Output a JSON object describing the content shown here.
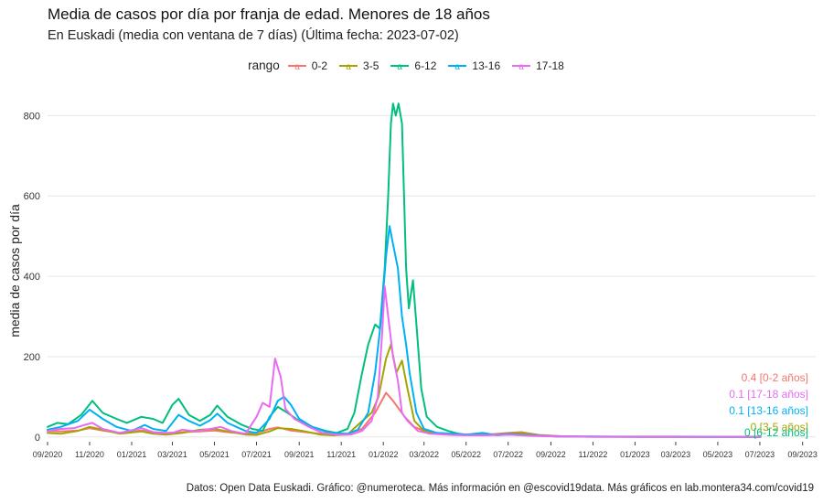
{
  "title": "Media de casos por día por franja de edad. Menores de 18 años",
  "subtitle": "En Euskadi (media con ventana de 7 días)  (Última fecha: 2023-07-02)",
  "caption": "Datos: Open Data Euskadi. Gráfico: @numeroteca. Más información en @escovid19data.  Más gráficos en lab.montera34.com/covid19",
  "legend_title": "rango",
  "colors": {
    "0-2": "#F8766D",
    "3-5": "#A3A500",
    "6-12": "#00BF7D",
    "13-16": "#00B0F6",
    "17-18": "#E76BF3",
    "grid": "#e6e6e6"
  },
  "chart_data": {
    "type": "line",
    "xlabel": "",
    "ylabel": "media de casos por día",
    "ylim": [
      -5,
      860
    ],
    "xlim": [
      "2020-09-01",
      "2023-09-20"
    ],
    "y_ticks": [
      0,
      200,
      400,
      600,
      800
    ],
    "x_ticks": [
      "2020-09-01",
      "2020-11-01",
      "2021-01-01",
      "2021-03-01",
      "2021-05-01",
      "2021-07-01",
      "2021-09-01",
      "2021-11-01",
      "2022-01-01",
      "2022-03-01",
      "2022-05-01",
      "2022-07-01",
      "2022-09-01",
      "2022-11-01",
      "2023-01-01",
      "2023-03-01",
      "2023-05-01",
      "2023-07-01",
      "2023-09-01"
    ],
    "x_tick_labels": [
      "09/2020",
      "11/2020",
      "01/2021",
      "03/2021",
      "05/2021",
      "07/2021",
      "09/2021",
      "11/2021",
      "01/2022",
      "03/2022",
      "05/2022",
      "07/2022",
      "09/2022",
      "11/2022",
      "01/2023",
      "03/2023",
      "05/2023",
      "07/2023",
      "09/2023"
    ],
    "legend_position": "top",
    "grid": true,
    "series": [
      {
        "name": "0-2",
        "end_label": "0.4 [0-2 años]",
        "points": [
          [
            "2020-09-01",
            15
          ],
          [
            "2020-09-20",
            14
          ],
          [
            "2020-10-15",
            16
          ],
          [
            "2020-11-01",
            22
          ],
          [
            "2020-11-20",
            16
          ],
          [
            "2020-12-15",
            10
          ],
          [
            "2021-01-15",
            16
          ],
          [
            "2021-02-01",
            12
          ],
          [
            "2021-02-20",
            10
          ],
          [
            "2021-03-15",
            12
          ],
          [
            "2021-04-10",
            14
          ],
          [
            "2021-05-01",
            16
          ],
          [
            "2021-05-20",
            12
          ],
          [
            "2021-06-15",
            8
          ],
          [
            "2021-07-01",
            10
          ],
          [
            "2021-07-20",
            20
          ],
          [
            "2021-08-01",
            24
          ],
          [
            "2021-08-20",
            16
          ],
          [
            "2021-09-10",
            12
          ],
          [
            "2021-10-01",
            8
          ],
          [
            "2021-10-20",
            6
          ],
          [
            "2021-11-10",
            8
          ],
          [
            "2021-12-01",
            20
          ],
          [
            "2021-12-20",
            60
          ],
          [
            "2022-01-05",
            110
          ],
          [
            "2022-01-15",
            90
          ],
          [
            "2022-02-01",
            50
          ],
          [
            "2022-02-15",
            25
          ],
          [
            "2022-03-01",
            15
          ],
          [
            "2022-03-20",
            10
          ],
          [
            "2022-04-10",
            8
          ],
          [
            "2022-05-01",
            6
          ],
          [
            "2022-06-01",
            6
          ],
          [
            "2022-07-01",
            10
          ],
          [
            "2022-07-20",
            12
          ],
          [
            "2022-08-15",
            5
          ],
          [
            "2022-09-15",
            2
          ],
          [
            "2022-11-01",
            1
          ],
          [
            "2023-01-01",
            1
          ],
          [
            "2023-03-01",
            1
          ],
          [
            "2023-05-01",
            0.8
          ],
          [
            "2023-07-02",
            0.4
          ]
        ]
      },
      {
        "name": "3-5",
        "end_label": "0 [3-5 años]",
        "points": [
          [
            "2020-09-01",
            10
          ],
          [
            "2020-09-20",
            8
          ],
          [
            "2020-10-15",
            15
          ],
          [
            "2020-11-01",
            25
          ],
          [
            "2020-11-15",
            20
          ],
          [
            "2020-12-15",
            8
          ],
          [
            "2021-01-15",
            14
          ],
          [
            "2021-02-01",
            8
          ],
          [
            "2021-02-20",
            6
          ],
          [
            "2021-03-15",
            10
          ],
          [
            "2021-04-10",
            18
          ],
          [
            "2021-05-01",
            20
          ],
          [
            "2021-05-20",
            14
          ],
          [
            "2021-06-15",
            6
          ],
          [
            "2021-07-01",
            5
          ],
          [
            "2021-07-20",
            14
          ],
          [
            "2021-08-01",
            22
          ],
          [
            "2021-08-20",
            20
          ],
          [
            "2021-09-10",
            14
          ],
          [
            "2021-10-01",
            6
          ],
          [
            "2021-10-20",
            4
          ],
          [
            "2021-11-10",
            6
          ],
          [
            "2021-11-25",
            30
          ],
          [
            "2021-12-15",
            60
          ],
          [
            "2021-12-25",
            100
          ],
          [
            "2022-01-05",
            195
          ],
          [
            "2022-01-12",
            230
          ],
          [
            "2022-01-20",
            160
          ],
          [
            "2022-01-28",
            190
          ],
          [
            "2022-02-05",
            120
          ],
          [
            "2022-02-15",
            40
          ],
          [
            "2022-03-01",
            15
          ],
          [
            "2022-03-20",
            8
          ],
          [
            "2022-04-10",
            6
          ],
          [
            "2022-05-01",
            5
          ],
          [
            "2022-06-01",
            5
          ],
          [
            "2022-07-01",
            8
          ],
          [
            "2022-07-20",
            10
          ],
          [
            "2022-08-15",
            4
          ],
          [
            "2022-09-15",
            1
          ],
          [
            "2022-11-01",
            0.5
          ],
          [
            "2023-01-01",
            0.5
          ],
          [
            "2023-03-01",
            0.3
          ],
          [
            "2023-05-01",
            0.2
          ],
          [
            "2023-07-02",
            0
          ]
        ]
      },
      {
        "name": "6-12",
        "end_label": "0 [6-12 años]",
        "points": [
          [
            "2020-09-01",
            25
          ],
          [
            "2020-09-15",
            35
          ],
          [
            "2020-10-01",
            32
          ],
          [
            "2020-10-20",
            55
          ],
          [
            "2020-11-05",
            90
          ],
          [
            "2020-11-20",
            60
          ],
          [
            "2020-12-10",
            45
          ],
          [
            "2020-12-25",
            35
          ],
          [
            "2021-01-15",
            50
          ],
          [
            "2021-02-01",
            45
          ],
          [
            "2021-02-15",
            35
          ],
          [
            "2021-03-01",
            80
          ],
          [
            "2021-03-10",
            95
          ],
          [
            "2021-03-25",
            55
          ],
          [
            "2021-04-10",
            40
          ],
          [
            "2021-04-25",
            55
          ],
          [
            "2021-05-05",
            78
          ],
          [
            "2021-05-20",
            50
          ],
          [
            "2021-06-10",
            30
          ],
          [
            "2021-06-25",
            20
          ],
          [
            "2021-07-10",
            15
          ],
          [
            "2021-07-20",
            50
          ],
          [
            "2021-08-01",
            75
          ],
          [
            "2021-08-15",
            60
          ],
          [
            "2021-09-01",
            40
          ],
          [
            "2021-09-20",
            25
          ],
          [
            "2021-10-10",
            15
          ],
          [
            "2021-10-25",
            10
          ],
          [
            "2021-11-10",
            20
          ],
          [
            "2021-11-20",
            60
          ],
          [
            "2021-11-30",
            150
          ],
          [
            "2021-12-10",
            230
          ],
          [
            "2021-12-20",
            280
          ],
          [
            "2021-12-27",
            270
          ],
          [
            "2022-01-03",
            420
          ],
          [
            "2022-01-08",
            600
          ],
          [
            "2022-01-12",
            780
          ],
          [
            "2022-01-15",
            830
          ],
          [
            "2022-01-19",
            800
          ],
          [
            "2022-01-23",
            830
          ],
          [
            "2022-01-28",
            780
          ],
          [
            "2022-02-03",
            420
          ],
          [
            "2022-02-07",
            320
          ],
          [
            "2022-02-13",
            390
          ],
          [
            "2022-02-18",
            280
          ],
          [
            "2022-02-25",
            120
          ],
          [
            "2022-03-05",
            50
          ],
          [
            "2022-03-20",
            25
          ],
          [
            "2022-04-05",
            15
          ],
          [
            "2022-04-20",
            8
          ],
          [
            "2022-05-05",
            5
          ],
          [
            "2022-05-25",
            10
          ],
          [
            "2022-06-10",
            5
          ],
          [
            "2022-07-01",
            8
          ],
          [
            "2022-07-20",
            6
          ],
          [
            "2022-08-15",
            3
          ],
          [
            "2022-09-15",
            1
          ],
          [
            "2022-11-01",
            1
          ],
          [
            "2023-01-01",
            0.5
          ],
          [
            "2023-03-01",
            0.4
          ],
          [
            "2023-05-01",
            0.2
          ],
          [
            "2023-07-02",
            0
          ]
        ]
      },
      {
        "name": "13-16",
        "end_label": "0.1 [13-16 años]",
        "points": [
          [
            "2020-09-01",
            18
          ],
          [
            "2020-09-20",
            25
          ],
          [
            "2020-10-15",
            40
          ],
          [
            "2020-11-01",
            68
          ],
          [
            "2020-11-20",
            45
          ],
          [
            "2020-12-10",
            25
          ],
          [
            "2021-01-01",
            15
          ],
          [
            "2021-01-20",
            30
          ],
          [
            "2021-02-01",
            20
          ],
          [
            "2021-02-20",
            15
          ],
          [
            "2021-03-10",
            55
          ],
          [
            "2021-03-25",
            40
          ],
          [
            "2021-04-10",
            28
          ],
          [
            "2021-04-25",
            42
          ],
          [
            "2021-05-05",
            58
          ],
          [
            "2021-05-20",
            35
          ],
          [
            "2021-06-15",
            15
          ],
          [
            "2021-07-01",
            10
          ],
          [
            "2021-07-20",
            45
          ],
          [
            "2021-08-01",
            90
          ],
          [
            "2021-08-10",
            100
          ],
          [
            "2021-08-20",
            80
          ],
          [
            "2021-09-01",
            45
          ],
          [
            "2021-09-20",
            25
          ],
          [
            "2021-10-15",
            10
          ],
          [
            "2021-11-10",
            8
          ],
          [
            "2021-11-25",
            18
          ],
          [
            "2021-12-10",
            60
          ],
          [
            "2021-12-20",
            160
          ],
          [
            "2021-12-28",
            280
          ],
          [
            "2022-01-05",
            450
          ],
          [
            "2022-01-10",
            525
          ],
          [
            "2022-01-15",
            480
          ],
          [
            "2022-01-22",
            420
          ],
          [
            "2022-01-28",
            300
          ],
          [
            "2022-02-03",
            230
          ],
          [
            "2022-02-08",
            160
          ],
          [
            "2022-02-18",
            60
          ],
          [
            "2022-03-01",
            20
          ],
          [
            "2022-03-20",
            10
          ],
          [
            "2022-04-10",
            8
          ],
          [
            "2022-05-01",
            6
          ],
          [
            "2022-05-25",
            10
          ],
          [
            "2022-06-15",
            4
          ],
          [
            "2022-07-01",
            6
          ],
          [
            "2022-08-01",
            4
          ],
          [
            "2022-09-15",
            1
          ],
          [
            "2022-11-01",
            1
          ],
          [
            "2023-01-01",
            0.5
          ],
          [
            "2023-03-01",
            0.4
          ],
          [
            "2023-05-01",
            0.3
          ],
          [
            "2023-07-02",
            0.1
          ]
        ]
      },
      {
        "name": "17-18",
        "end_label": "0.1 [17-18 años]",
        "points": [
          [
            "2020-09-01",
            15
          ],
          [
            "2020-09-20",
            20
          ],
          [
            "2020-10-10",
            22
          ],
          [
            "2020-10-25",
            30
          ],
          [
            "2020-11-05",
            35
          ],
          [
            "2020-11-20",
            20
          ],
          [
            "2020-12-15",
            10
          ],
          [
            "2021-01-15",
            22
          ],
          [
            "2021-02-05",
            10
          ],
          [
            "2021-03-01",
            10
          ],
          [
            "2021-03-15",
            18
          ],
          [
            "2021-04-05",
            14
          ],
          [
            "2021-04-25",
            20
          ],
          [
            "2021-05-10",
            25
          ],
          [
            "2021-05-25",
            15
          ],
          [
            "2021-06-15",
            8
          ],
          [
            "2021-07-01",
            50
          ],
          [
            "2021-07-10",
            85
          ],
          [
            "2021-07-20",
            75
          ],
          [
            "2021-07-28",
            195
          ],
          [
            "2021-08-05",
            150
          ],
          [
            "2021-08-12",
            70
          ],
          [
            "2021-08-25",
            45
          ],
          [
            "2021-09-15",
            25
          ],
          [
            "2021-10-05",
            10
          ],
          [
            "2021-10-25",
            6
          ],
          [
            "2021-11-15",
            6
          ],
          [
            "2021-12-01",
            15
          ],
          [
            "2021-12-15",
            40
          ],
          [
            "2021-12-24",
            100
          ],
          [
            "2021-12-30",
            250
          ],
          [
            "2022-01-03",
            375
          ],
          [
            "2022-01-08",
            300
          ],
          [
            "2022-01-15",
            200
          ],
          [
            "2022-01-22",
            140
          ],
          [
            "2022-01-28",
            60
          ],
          [
            "2022-02-05",
            40
          ],
          [
            "2022-02-20",
            15
          ],
          [
            "2022-03-10",
            8
          ],
          [
            "2022-04-10",
            5
          ],
          [
            "2022-05-01",
            4
          ],
          [
            "2022-06-01",
            4
          ],
          [
            "2022-07-01",
            6
          ],
          [
            "2022-08-01",
            3
          ],
          [
            "2022-09-15",
            1
          ],
          [
            "2022-11-01",
            0.5
          ],
          [
            "2023-01-01",
            0.3
          ],
          [
            "2023-03-01",
            0.2
          ],
          [
            "2023-05-01",
            0.2
          ],
          [
            "2023-07-02",
            0.1
          ]
        ]
      }
    ]
  }
}
